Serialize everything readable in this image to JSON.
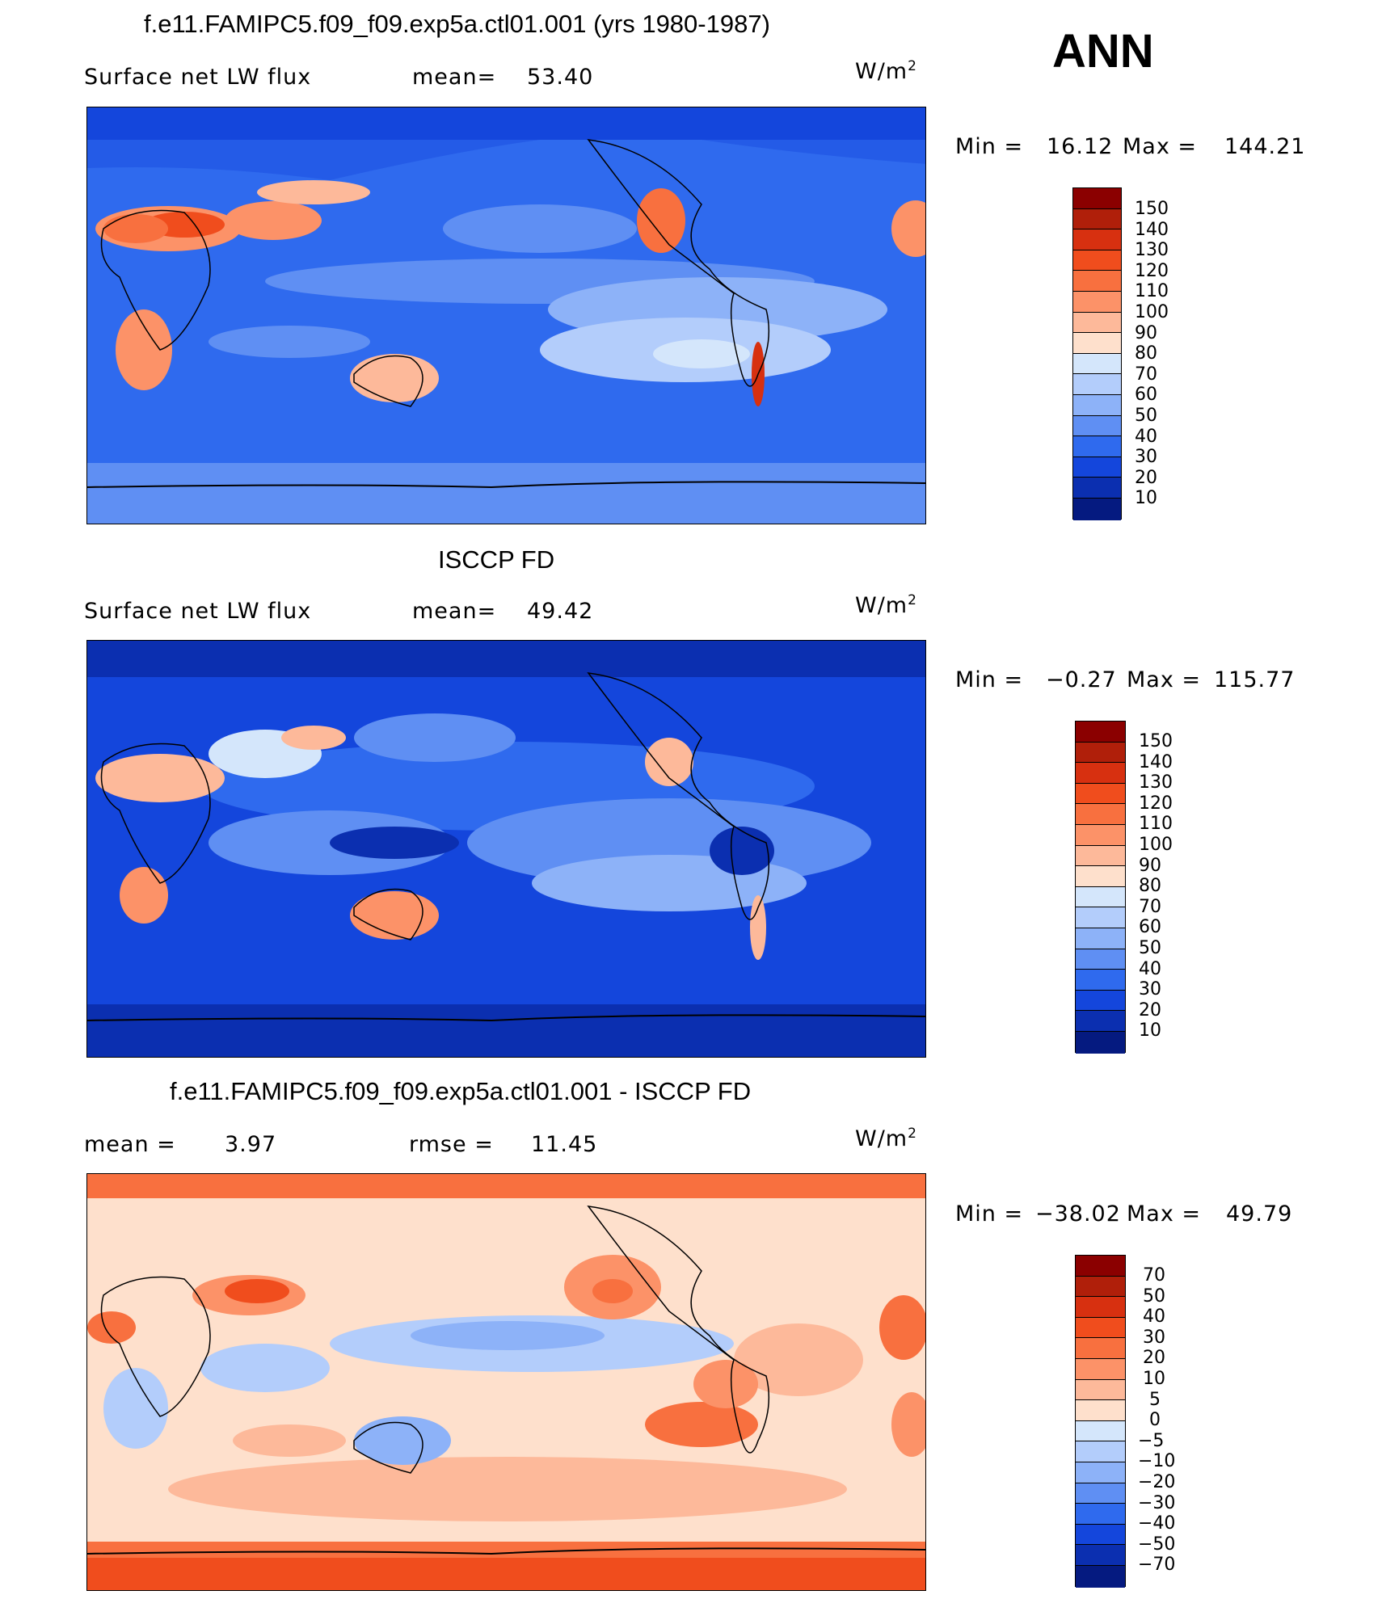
{
  "season": "ANN",
  "units": "W/m",
  "units_sup": "2",
  "panels": [
    {
      "title": "f.e11.FAMIPC5.f09_f09.exp5a.ctl01.001 (yrs 1980-1987)",
      "variable": "Surface net LW flux",
      "mean_label": "mean=",
      "mean_value": "53.40",
      "min_label": "Min =",
      "min_value": "16.12",
      "max_label": "Max =",
      "max_value": "144.21",
      "colorbar": {
        "labels": [
          "150",
          "140",
          "130",
          "120",
          "110",
          "100",
          "90",
          "80",
          "70",
          "60",
          "50",
          "40",
          "30",
          "20",
          "10"
        ],
        "colors": [
          "#8b0000",
          "#b01f0a",
          "#d73010",
          "#f04d1d",
          "#f8703f",
          "#fc9268",
          "#fdb99a",
          "#fee0cc",
          "#d4e6fb",
          "#b3cdfb",
          "#8db2f8",
          "#5f8ff3",
          "#2f6aee",
          "#1446dc",
          "#0b2fb0",
          "#051a80"
        ]
      }
    },
    {
      "title": "ISCCP FD",
      "variable": "Surface net LW flux",
      "mean_label": "mean=",
      "mean_value": "49.42",
      "min_label": "Min =",
      "min_value": "−0.27",
      "max_label": "Max =",
      "max_value": "115.77",
      "colorbar": {
        "labels": [
          "150",
          "140",
          "130",
          "120",
          "110",
          "100",
          "90",
          "80",
          "70",
          "60",
          "50",
          "40",
          "30",
          "20",
          "10"
        ],
        "colors": [
          "#8b0000",
          "#b01f0a",
          "#d73010",
          "#f04d1d",
          "#f8703f",
          "#fc9268",
          "#fdb99a",
          "#fee0cc",
          "#d4e6fb",
          "#b3cdfb",
          "#8db2f8",
          "#5f8ff3",
          "#2f6aee",
          "#1446dc",
          "#0b2fb0",
          "#051a80"
        ]
      }
    },
    {
      "title": "f.e11.FAMIPC5.f09_f09.exp5a.ctl01.001 - ISCCP FD",
      "mean_label": "mean =",
      "mean_value": "3.97",
      "rmse_label": "rmse =",
      "rmse_value": "11.45",
      "min_label": "Min =",
      "min_value": "−38.02",
      "max_label": "Max =",
      "max_value": "49.79",
      "colorbar": {
        "labels": [
          "70",
          "50",
          "40",
          "30",
          "20",
          "10",
          "5",
          "0",
          "−5",
          "−10",
          "−20",
          "−30",
          "−40",
          "−50",
          "−70"
        ],
        "colors": [
          "#8b0000",
          "#b01f0a",
          "#d73010",
          "#f04d1d",
          "#f8703f",
          "#fc9268",
          "#fdb99a",
          "#fee0cc",
          "#d4e6fb",
          "#b3cdfb",
          "#8db2f8",
          "#5f8ff3",
          "#2f6aee",
          "#1446dc",
          "#0b2fb0",
          "#051a80"
        ]
      }
    }
  ]
}
